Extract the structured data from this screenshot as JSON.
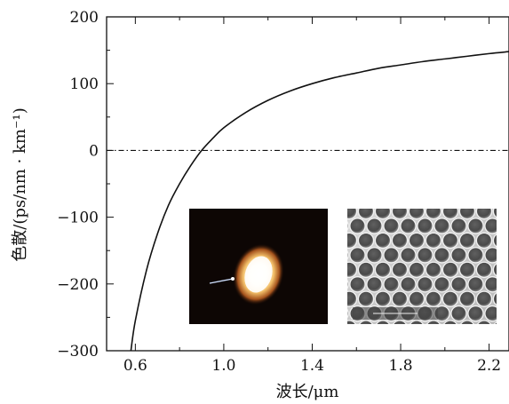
{
  "chart_data": {
    "type": "line",
    "xlabel": "波长/μm",
    "ylabel": "色散/(ps/nm · km⁻¹)",
    "xlim": [
      0.47,
      2.29
    ],
    "ylim": [
      -300,
      200
    ],
    "xticks": [
      0.6,
      1.0,
      1.4,
      1.8,
      2.2
    ],
    "xtick_labels": [
      "0.6",
      "1.0",
      "1.4",
      "1.8",
      "2.2"
    ],
    "yticks": [
      -300,
      -200,
      -100,
      0,
      100,
      200
    ],
    "ytick_labels": [
      "−300",
      "−200",
      "−100",
      "0",
      "100",
      "200"
    ],
    "reference_line": {
      "y": 0,
      "style": "dash-dot"
    },
    "series": [
      {
        "x": [
          0.58,
          0.6,
          0.65,
          0.7,
          0.75,
          0.8,
          0.85,
          0.9,
          0.95,
          1.0,
          1.1,
          1.2,
          1.3,
          1.4,
          1.5,
          1.6,
          1.7,
          1.8,
          1.9,
          2.0,
          2.1,
          2.2,
          2.29
        ],
        "y": [
          -300,
          -255,
          -180,
          -125,
          -82,
          -50,
          -23,
          0,
          18,
          34,
          57,
          75,
          89,
          100,
          109,
          116,
          123,
          128,
          133,
          137,
          141,
          145,
          148
        ]
      }
    ],
    "grid": false,
    "insets": [
      {
        "name": "mode-field-image"
      },
      {
        "name": "fiber-cross-section-sem"
      }
    ],
    "colors": {
      "line": "#111111",
      "axis": "#111111"
    }
  }
}
